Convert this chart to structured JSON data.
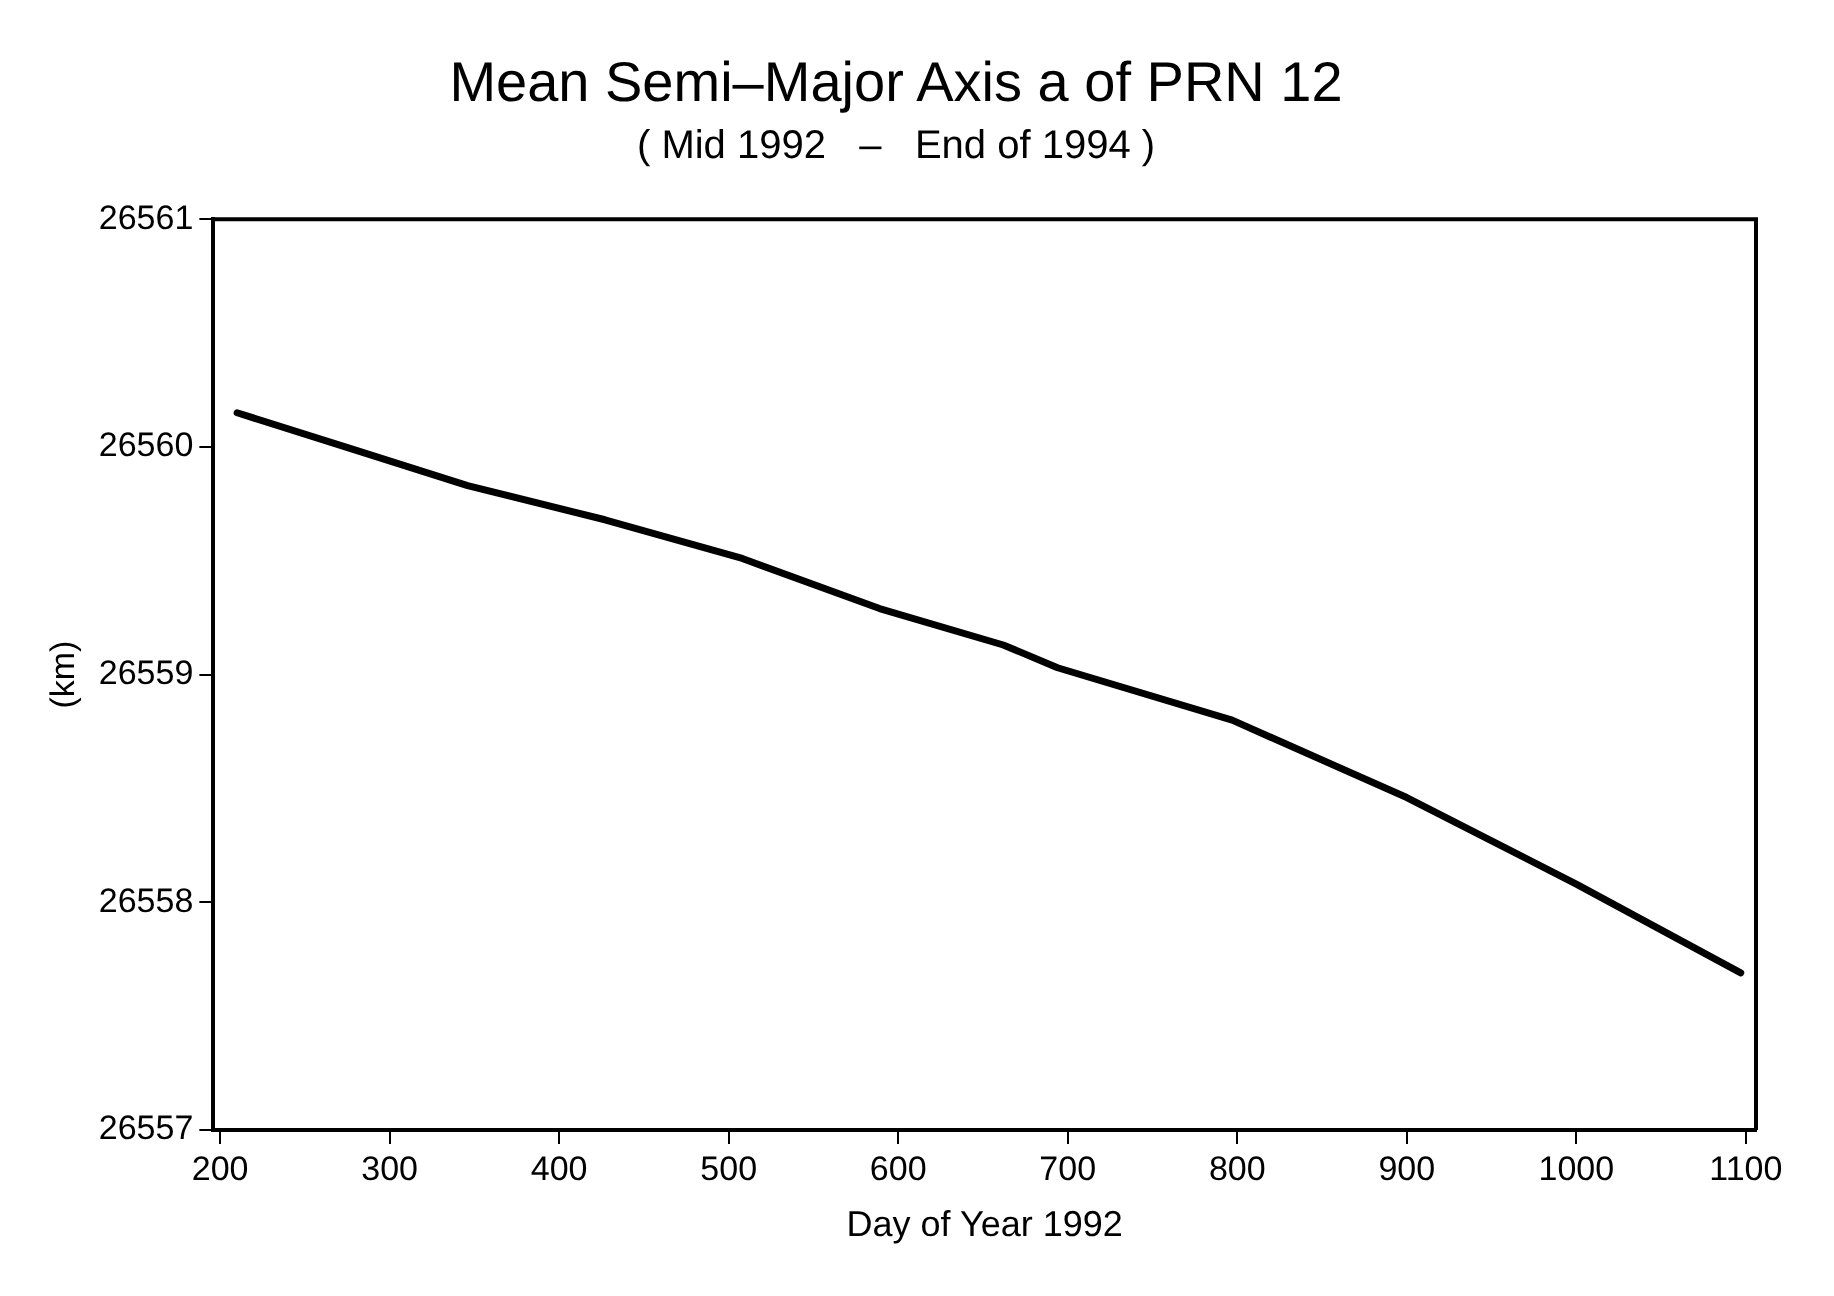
{
  "chart_data": {
    "type": "line",
    "title": "Mean Semi–Major Axis a of PRN 12",
    "subtitle": "( Mid 1992   –   End of 1994 )",
    "xlabel": "Day of Year 1992",
    "ylabel": "(km)",
    "x": [
      210,
      278,
      346,
      427,
      508,
      589,
      662,
      694,
      797,
      900,
      1000,
      1097
    ],
    "series": [
      {
        "color": "#000000",
        "values": [
          26560.15,
          26559.99,
          26559.83,
          26559.68,
          26559.51,
          26559.29,
          26559.13,
          26559.03,
          26558.8,
          26558.46,
          26558.08,
          26557.69
        ]
      }
    ],
    "xlim": [
      196,
      1106
    ],
    "xticks": [
      200,
      300,
      400,
      500,
      600,
      700,
      800,
      900,
      1000,
      1100
    ],
    "ylim": [
      26557,
      26561
    ],
    "yticks": [
      26557,
      26558,
      26559,
      26560,
      26561
    ],
    "grid": false,
    "legend": false,
    "marker": "none",
    "line_style": "solid"
  }
}
